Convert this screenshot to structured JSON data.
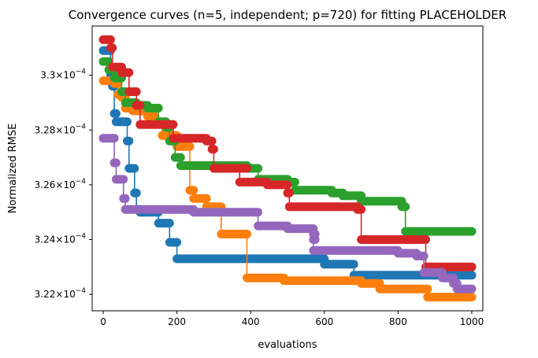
{
  "chart_data": {
    "type": "line",
    "title": "Convergence curves (n=5, independent; p=720) for fitting PLACEHOLDER",
    "xlabel": "evaluations",
    "ylabel": "Normalized RMSE",
    "xlim": [
      -30,
      1030
    ],
    "ylim": [
      0.0003214,
      0.0003318
    ],
    "x_ticks": [
      0,
      200,
      400,
      600,
      800,
      1000
    ],
    "y_ticks": [
      {
        "value": 0.000322,
        "mantissa": "3.22",
        "exponent": "−4"
      },
      {
        "value": 0.000324,
        "mantissa": "3.24",
        "exponent": "−4"
      },
      {
        "value": 0.000326,
        "mantissa": "3.26",
        "exponent": "−4"
      },
      {
        "value": 0.000328,
        "mantissa": "3.28",
        "exponent": "−4"
      },
      {
        "value": 0.00033,
        "mantissa": "3.3",
        "exponent": "−4"
      }
    ],
    "grid": false,
    "legend": "none",
    "series": [
      {
        "color": "#1f77b4",
        "steps": [
          [
            0,
            0.0003309
          ],
          [
            20,
            0.00033
          ],
          [
            25,
            0.0003296
          ],
          [
            30,
            0.0003286
          ],
          [
            35,
            0.0003283
          ],
          [
            65,
            0.0003276
          ],
          [
            70,
            0.0003266
          ],
          [
            85,
            0.0003257
          ],
          [
            90,
            0.0003251
          ],
          [
            100,
            0.000325
          ],
          [
            150,
            0.0003246
          ],
          [
            180,
            0.0003239
          ],
          [
            200,
            0.0003233
          ],
          [
            600,
            0.0003231
          ],
          [
            680,
            0.0003227
          ],
          [
            1000,
            0.0003227
          ]
        ]
      },
      {
        "color": "#ff7f0e",
        "steps": [
          [
            0,
            0.0003298
          ],
          [
            30,
            0.0003297
          ],
          [
            40,
            0.0003293
          ],
          [
            50,
            0.0003292
          ],
          [
            60,
            0.0003288
          ],
          [
            80,
            0.0003287
          ],
          [
            120,
            0.0003285
          ],
          [
            140,
            0.0003283
          ],
          [
            160,
            0.0003278
          ],
          [
            200,
            0.0003274
          ],
          [
            235,
            0.0003258
          ],
          [
            245,
            0.0003255
          ],
          [
            280,
            0.0003252
          ],
          [
            320,
            0.0003242
          ],
          [
            390,
            0.0003226
          ],
          [
            420,
            0.0003226
          ],
          [
            490,
            0.0003225
          ],
          [
            700,
            0.0003224
          ],
          [
            750,
            0.0003222
          ],
          [
            880,
            0.0003219
          ],
          [
            1000,
            0.0003219
          ]
        ]
      },
      {
        "color": "#2ca02c",
        "steps": [
          [
            0,
            0.0003305
          ],
          [
            15,
            0.0003302
          ],
          [
            30,
            0.0003299
          ],
          [
            50,
            0.0003294
          ],
          [
            60,
            0.000329
          ],
          [
            90,
            0.0003289
          ],
          [
            120,
            0.0003288
          ],
          [
            150,
            0.0003283
          ],
          [
            170,
            0.0003281
          ],
          [
            180,
            0.0003276
          ],
          [
            195,
            0.000327
          ],
          [
            210,
            0.0003267
          ],
          [
            300,
            0.0003267
          ],
          [
            390,
            0.0003266
          ],
          [
            420,
            0.0003262
          ],
          [
            500,
            0.0003261
          ],
          [
            520,
            0.0003258
          ],
          [
            620,
            0.0003257
          ],
          [
            650,
            0.0003256
          ],
          [
            700,
            0.0003254
          ],
          [
            810,
            0.0003252
          ],
          [
            820,
            0.0003243
          ],
          [
            1000,
            0.0003243
          ]
        ]
      },
      {
        "color": "#d62728",
        "steps": [
          [
            0,
            0.0003313
          ],
          [
            20,
            0.000331
          ],
          [
            25,
            0.0003303
          ],
          [
            50,
            0.0003301
          ],
          [
            70,
            0.0003294
          ],
          [
            90,
            0.0003289
          ],
          [
            100,
            0.0003282
          ],
          [
            190,
            0.0003277
          ],
          [
            240,
            0.0003277
          ],
          [
            280,
            0.0003276
          ],
          [
            295,
            0.0003273
          ],
          [
            300,
            0.0003266
          ],
          [
            390,
            0.0003266
          ],
          [
            370,
            0.0003261
          ],
          [
            440,
            0.0003261
          ],
          [
            445,
            0.000326
          ],
          [
            500,
            0.0003257
          ],
          [
            505,
            0.0003252
          ],
          [
            690,
            0.0003251
          ],
          [
            700,
            0.000324
          ],
          [
            870,
            0.000324
          ],
          [
            875,
            0.000323
          ],
          [
            1000,
            0.000323
          ]
        ]
      },
      {
        "color": "#9467bd",
        "steps": [
          [
            0,
            0.0003277
          ],
          [
            30,
            0.0003268
          ],
          [
            35,
            0.0003262
          ],
          [
            55,
            0.0003255
          ],
          [
            60,
            0.0003251
          ],
          [
            245,
            0.000325
          ],
          [
            420,
            0.0003245
          ],
          [
            500,
            0.0003244
          ],
          [
            570,
            0.0003242
          ],
          [
            575,
            0.000324
          ],
          [
            570,
            0.0003236
          ],
          [
            800,
            0.0003235
          ],
          [
            850,
            0.0003234
          ],
          [
            870,
            0.0003228
          ],
          [
            920,
            0.0003226
          ],
          [
            950,
            0.0003224
          ],
          [
            960,
            0.0003222
          ],
          [
            1000,
            0.0003222
          ]
        ]
      }
    ]
  }
}
